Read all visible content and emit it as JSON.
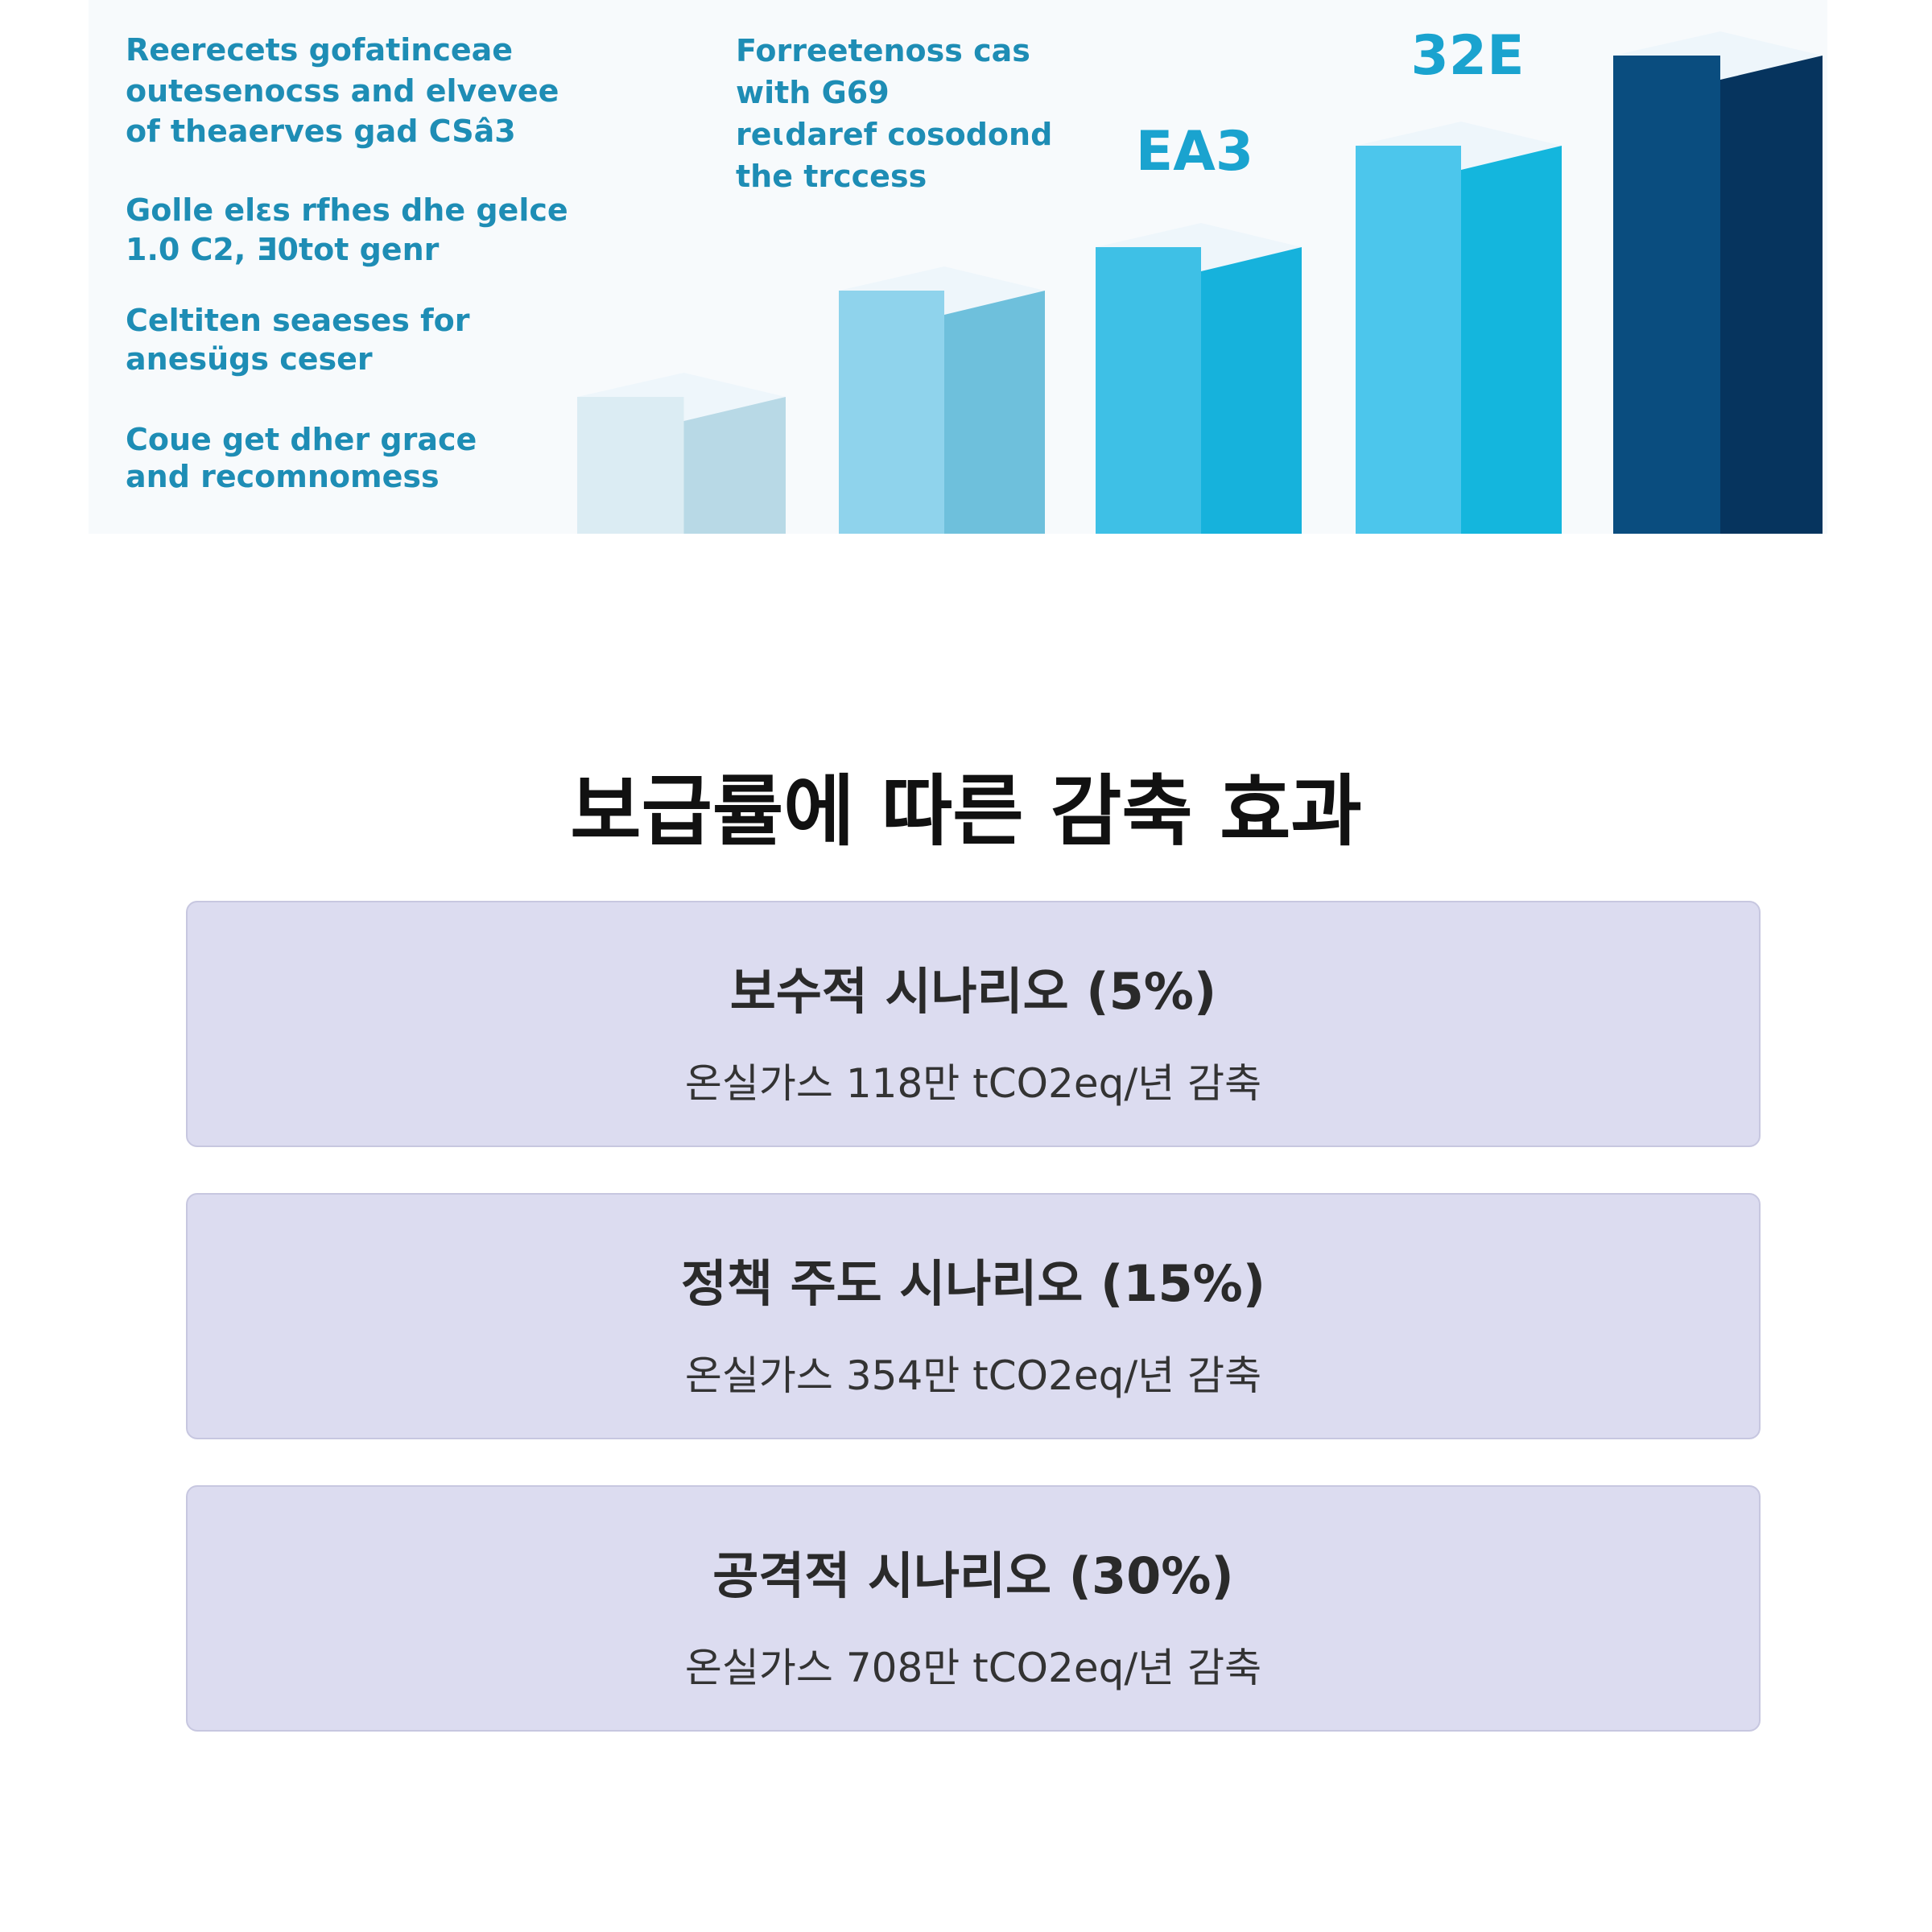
{
  "image": {
    "left_blocks": [
      [
        "Reerecets gofatinceae",
        "outesenocss and elvevee",
        "of theaerves gad CSâ3"
      ],
      [
        "Golle elɛs rfhes dhe gelce",
        "1.0 C2, Ǝ0tot genr"
      ],
      [
        "Celtiten seaeses for",
        "anesügs ceser"
      ],
      [
        "Coue get dher grace",
        "and recomnomess"
      ]
    ],
    "middle_block": [
      "Forreetenoss cas",
      "with G69",
      "reɩdaref cosodond",
      "the trccess"
    ],
    "labels": [
      "EA3",
      "32E"
    ]
  },
  "heading": "보급률에 따른 감축 효과",
  "cards": [
    {
      "title": "보수적 시나리오 (5%)",
      "text": "온실가스 118만 tCO2eq/년 감축"
    },
    {
      "title": "정책 주도 시나리오 (15%)",
      "text": "온실가스 354만 tCO2eq/년 감축"
    },
    {
      "title": "공격적 시나리오 (30%)",
      "text": "온실가스 708만 tCO2eq/년 감축"
    }
  ]
}
